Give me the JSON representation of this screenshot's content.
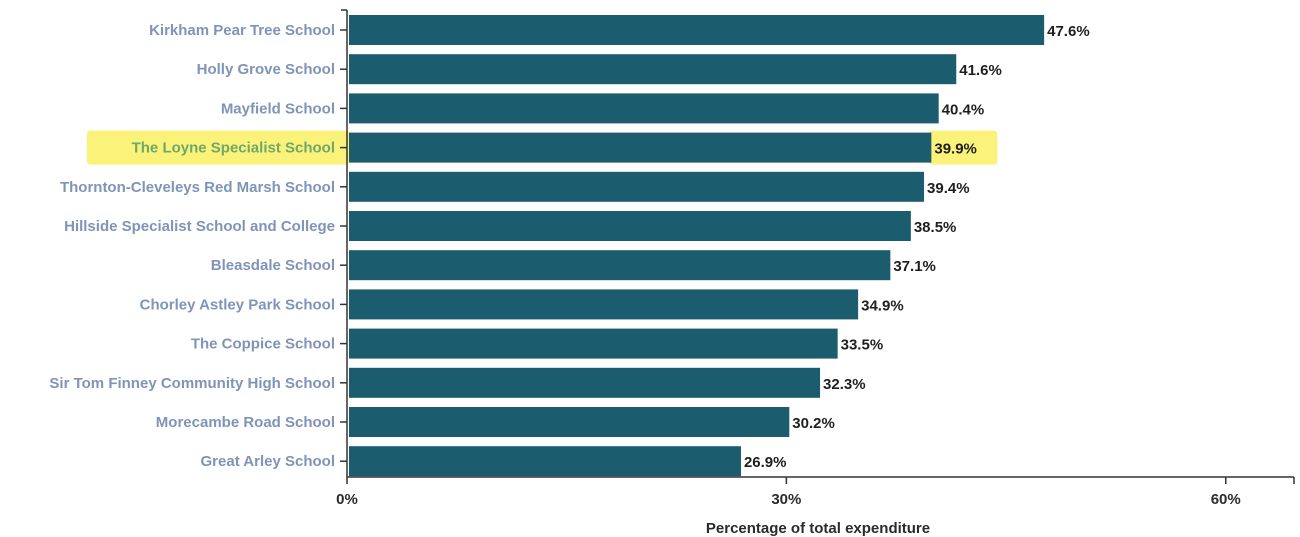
{
  "chart_data": {
    "type": "bar",
    "orientation": "horizontal",
    "categories": [
      "Kirkham Pear Tree School",
      "Holly Grove School",
      "Mayfield School",
      "The Loyne Specialist School",
      "Thornton-Cleveleys Red Marsh School",
      "Hillside Specialist School and College",
      "Bleasdale School",
      "Chorley Astley Park School",
      "The Coppice School",
      "Sir Tom Finney Community High School",
      "Morecambe Road School",
      "Great Arley School"
    ],
    "values": [
      47.6,
      41.6,
      40.4,
      39.9,
      39.4,
      38.5,
      37.1,
      34.9,
      33.5,
      32.3,
      30.2,
      26.9
    ],
    "value_labels": [
      "47.6%",
      "41.6%",
      "40.4%",
      "39.9%",
      "39.4%",
      "38.5%",
      "37.1%",
      "34.9%",
      "33.5%",
      "32.3%",
      "30.2%",
      "26.9%"
    ],
    "highlighted_category": "The Loyne Specialist School",
    "xlabel": "Percentage of total expenditure",
    "ylabel": "",
    "title": "",
    "xlim": [
      0,
      63.5
    ],
    "xticks": [
      0,
      30,
      60
    ],
    "xtick_labels": [
      "0%",
      "30%",
      "60%"
    ],
    "grid": false,
    "legend": "none",
    "colors": {
      "bar": "#1b5c6e",
      "category_label": "#7f94b8",
      "highlight_label": "#6fa86a",
      "highlight_marker": "#fbf27a",
      "axis": "#333333",
      "text": "#1f1f1f"
    }
  }
}
